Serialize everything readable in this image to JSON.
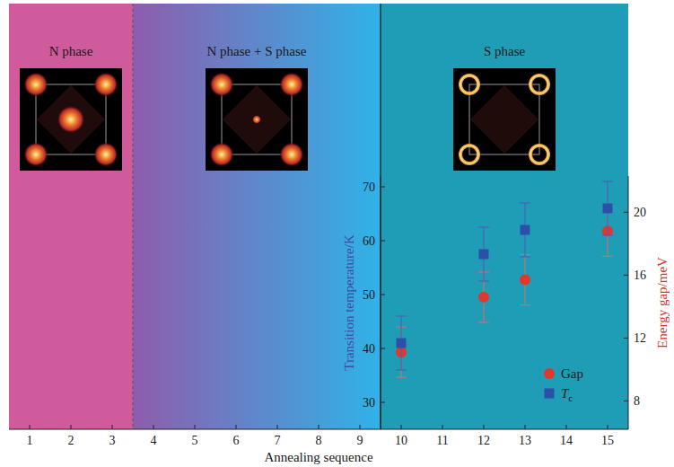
{
  "chart_data": {
    "type": "scatter",
    "x_label": "Annealing sequence",
    "y_label": "Transition temperature/K",
    "y2_label": "Energy gap/meV",
    "xlim": [
      0.5,
      15.5
    ],
    "xticks": [
      1,
      2,
      3,
      4,
      5,
      6,
      7,
      8,
      9,
      10,
      11,
      12,
      13,
      14,
      15
    ],
    "ylim": [
      25,
      72
    ],
    "yticks": [
      30,
      40,
      50,
      60,
      70
    ],
    "y2lim": [
      6.2,
      22.3
    ],
    "y2ticks": [
      8,
      12,
      16,
      20
    ],
    "regions": [
      {
        "label": "N phase",
        "from": 0.5,
        "to": 3.5,
        "color": "#cf5a9c"
      },
      {
        "label": "N phase + S phase",
        "from": 3.5,
        "to": 9.5,
        "color": "#8f5cad"
      },
      {
        "label": "S phase",
        "from": 9.5,
        "to": 15.5,
        "color": "#1f9db6"
      }
    ],
    "series": [
      {
        "name": "Gap",
        "axis": "y2",
        "color": "#e2372b",
        "marker": "circle",
        "x": [
          10,
          12,
          13,
          15
        ],
        "values": [
          11.1,
          14.6,
          15.7,
          18.8
        ],
        "errors": [
          1.6,
          1.6,
          1.6,
          1.6
        ]
      },
      {
        "name": "Tc",
        "axis": "y",
        "color": "#2c50a8",
        "marker": "square",
        "x": [
          10,
          12,
          13,
          15
        ],
        "values": [
          41,
          57.5,
          62,
          66
        ],
        "errors": [
          5,
          5,
          5,
          5
        ]
      }
    ],
    "legend": "lower right"
  }
}
